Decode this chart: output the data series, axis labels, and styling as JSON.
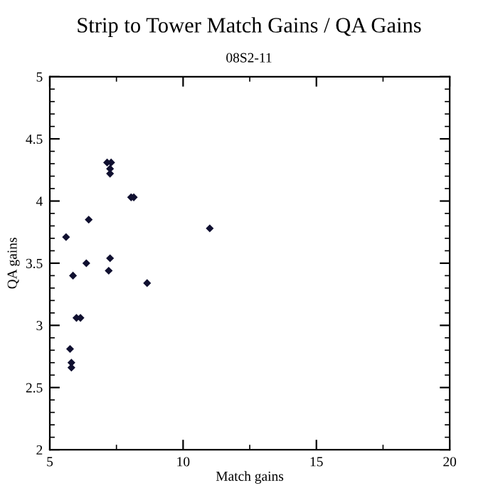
{
  "chart_data": {
    "type": "scatter",
    "title": "Strip to Tower Match Gains / QA Gains",
    "subtitle": "08S2-11",
    "xlabel": "Match gains",
    "ylabel": "QA gains",
    "x": [
      7.15,
      7.3,
      7.26,
      7.26,
      8.05,
      8.15,
      6.46,
      5.61,
      11.0,
      7.26,
      6.37,
      7.21,
      5.87,
      8.65,
      6.0,
      6.15,
      5.76,
      5.81,
      5.81
    ],
    "values": [
      4.31,
      4.31,
      4.26,
      4.22,
      4.03,
      4.03,
      3.85,
      3.71,
      3.78,
      3.54,
      3.5,
      3.44,
      3.4,
      3.34,
      3.06,
      3.06,
      2.81,
      2.7,
      2.66
    ],
    "color": "#101030",
    "marker": "diamond",
    "xlim": [
      5,
      20
    ],
    "xticks": [
      5,
      10,
      15,
      20
    ],
    "ylim": [
      2,
      5
    ],
    "yticks": [
      2,
      2.5,
      3,
      3.5,
      4,
      4.5,
      5
    ],
    "grid": false
  }
}
